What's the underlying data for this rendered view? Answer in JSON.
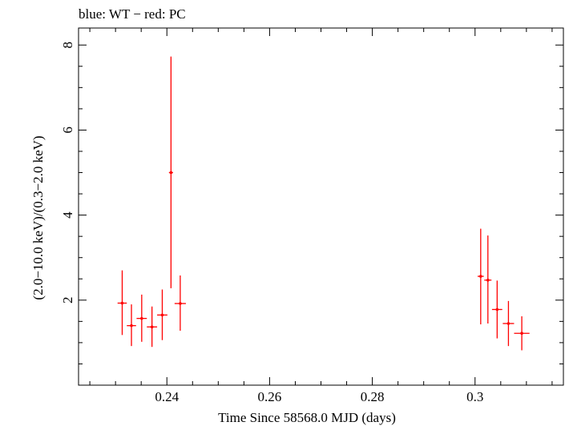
{
  "chart_data": {
    "type": "scatter",
    "legend_text": "blue: WT − red: PC",
    "xlabel": "Time Since 58568.0 MJD (days)",
    "ylabel": "(2.0−10.0 keV)/(0.3−2.0 keV)",
    "xlim": [
      0.2228,
      0.3172
    ],
    "ylim": [
      0.0,
      8.4
    ],
    "x_ticks": [
      0.24,
      0.26,
      0.28,
      0.3
    ],
    "x_tick_labels": [
      "0.24",
      "0.26",
      "0.28",
      "0.3"
    ],
    "y_ticks": [
      2,
      4,
      6,
      8
    ],
    "y_tick_labels": [
      "2",
      "4",
      "6",
      "8"
    ],
    "series": [
      {
        "name": "PC",
        "color": "#ff0000",
        "points": [
          {
            "x": 0.2313,
            "xerr": 0.0009,
            "y": 1.93,
            "ylo": 1.18,
            "yhi": 2.7
          },
          {
            "x": 0.2331,
            "xerr": 0.0009,
            "y": 1.4,
            "ylo": 0.92,
            "yhi": 1.9
          },
          {
            "x": 0.2351,
            "xerr": 0.001,
            "y": 1.57,
            "ylo": 1.02,
            "yhi": 2.13
          },
          {
            "x": 0.2371,
            "xerr": 0.001,
            "y": 1.37,
            "ylo": 0.9,
            "yhi": 1.85
          },
          {
            "x": 0.2391,
            "xerr": 0.001,
            "y": 1.65,
            "ylo": 1.06,
            "yhi": 2.25
          },
          {
            "x": 0.2408,
            "xerr": 0.0004,
            "y": 5.0,
            "ylo": 2.28,
            "yhi": 7.73
          },
          {
            "x": 0.2426,
            "xerr": 0.0011,
            "y": 1.92,
            "ylo": 1.28,
            "yhi": 2.58
          },
          {
            "x": 0.3011,
            "xerr": 0.0006,
            "y": 2.56,
            "ylo": 1.43,
            "yhi": 3.68
          },
          {
            "x": 0.3025,
            "xerr": 0.0007,
            "y": 2.47,
            "ylo": 1.45,
            "yhi": 3.52
          },
          {
            "x": 0.3043,
            "xerr": 0.001,
            "y": 1.78,
            "ylo": 1.1,
            "yhi": 2.46
          },
          {
            "x": 0.3065,
            "xerr": 0.0011,
            "y": 1.45,
            "ylo": 0.92,
            "yhi": 1.98
          },
          {
            "x": 0.3091,
            "xerr": 0.0015,
            "y": 1.22,
            "ylo": 0.82,
            "yhi": 1.62
          }
        ]
      }
    ]
  }
}
